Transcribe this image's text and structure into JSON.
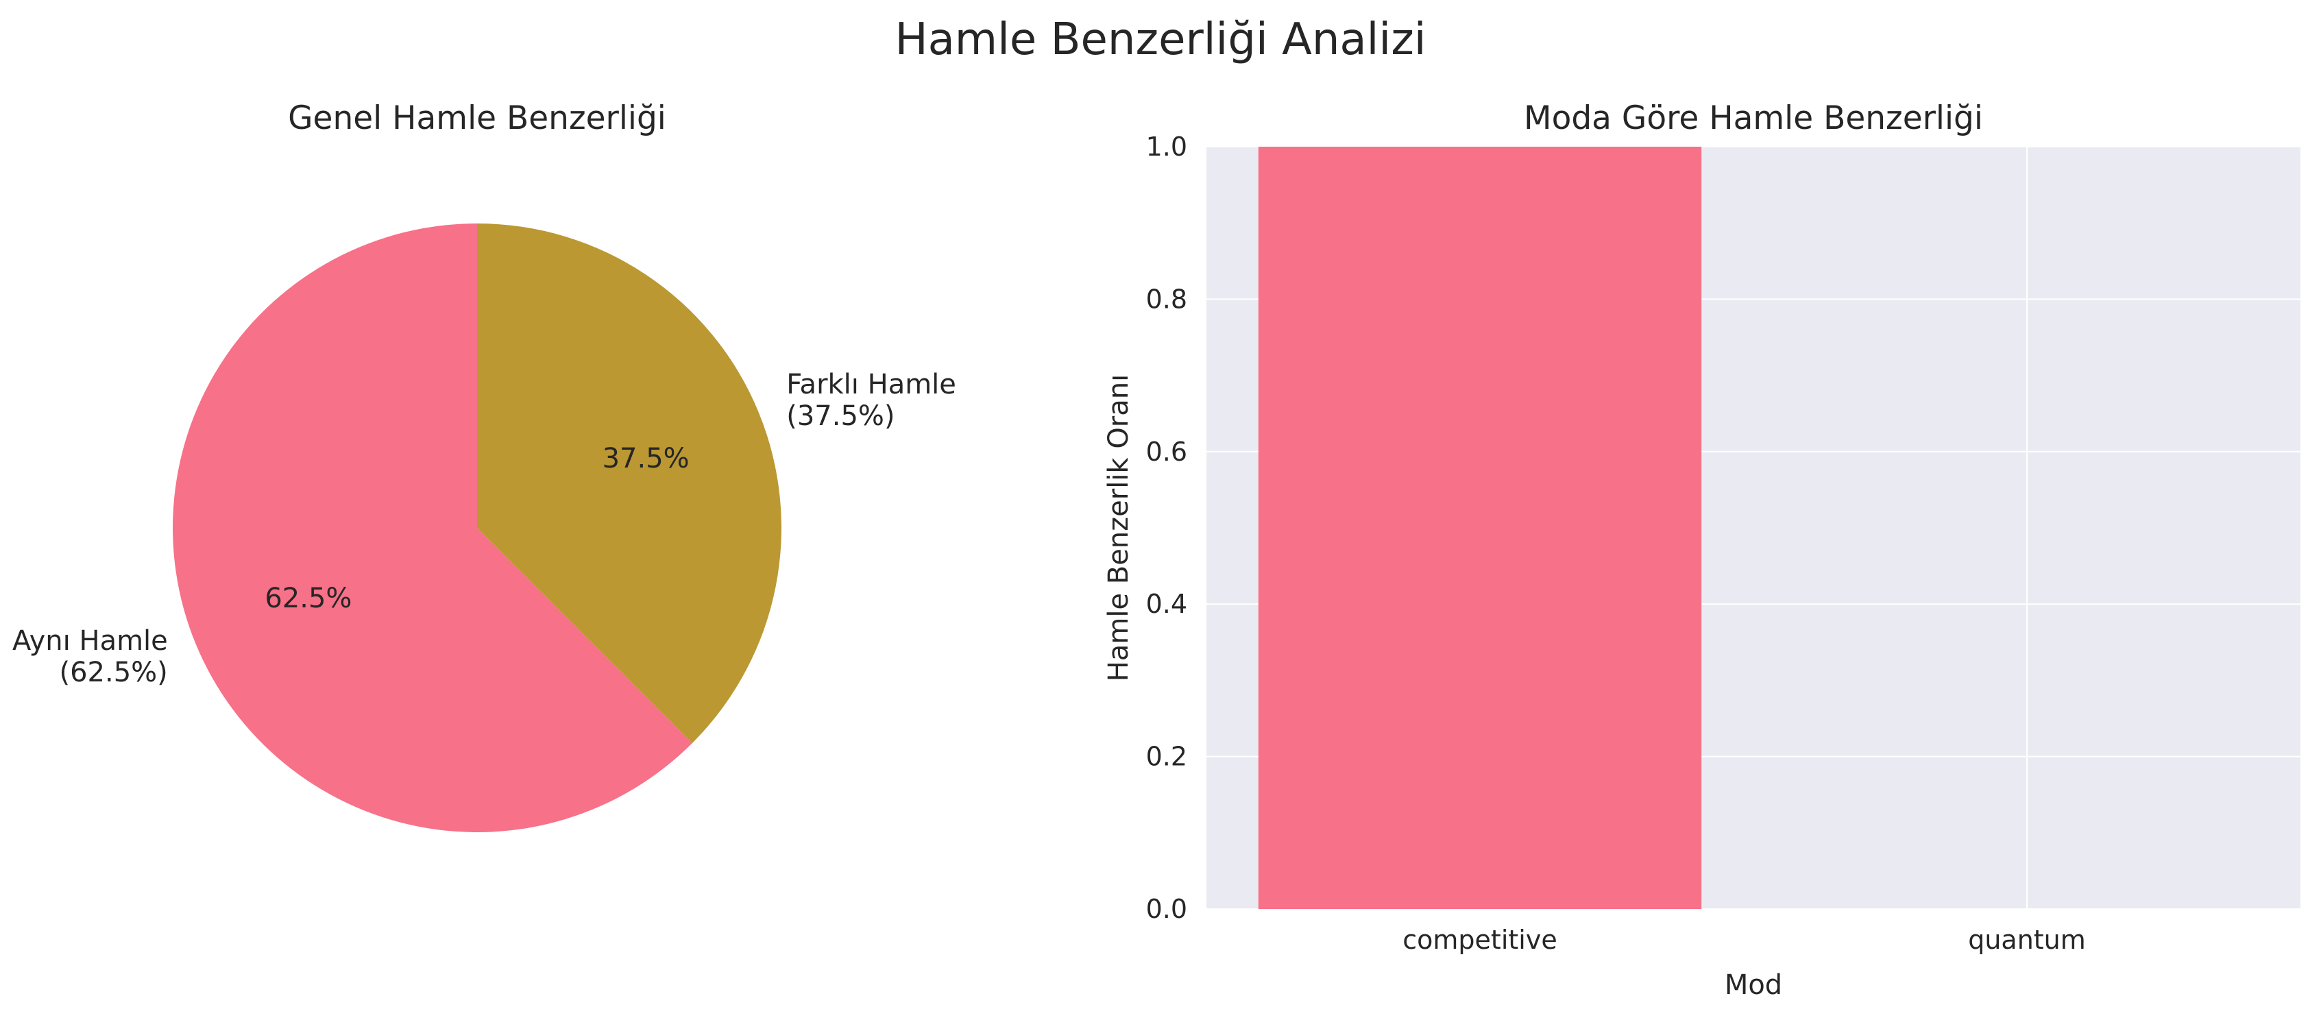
{
  "figure": {
    "title": "Hamle Benzerliği Analizi"
  },
  "colors": {
    "slice_1": "#f77189",
    "slice_2": "#bb9832",
    "bar": "#f77189",
    "axes_bg": "#eaeaf2",
    "grid": "#ffffff"
  },
  "chart_data": [
    {
      "type": "pie",
      "title": "Genel Hamle Benzerliği",
      "slices": [
        {
          "label": "Aynı Hamle\n(62.5%)",
          "value": 62.5,
          "pct_label": "62.5%"
        },
        {
          "label": "Farklı Hamle\n(37.5%)",
          "value": 37.5,
          "pct_label": "37.5%"
        }
      ],
      "start_angle_deg": 90,
      "direction": "counterclockwise"
    },
    {
      "type": "bar",
      "title": "Moda Göre Hamle Benzerliği",
      "categories": [
        "competitive",
        "quantum"
      ],
      "values": [
        1.0,
        0.0
      ],
      "xlabel": "Mod",
      "ylabel": "Hamle Benzerlik Oranı",
      "ylim": [
        0.0,
        1.0
      ],
      "yticks": [
        0.0,
        0.2,
        0.4,
        0.6,
        0.8,
        1.0
      ],
      "ytick_labels": [
        "0.0",
        "0.2",
        "0.4",
        "0.6",
        "0.8",
        "1.0"
      ],
      "grid": true
    }
  ]
}
